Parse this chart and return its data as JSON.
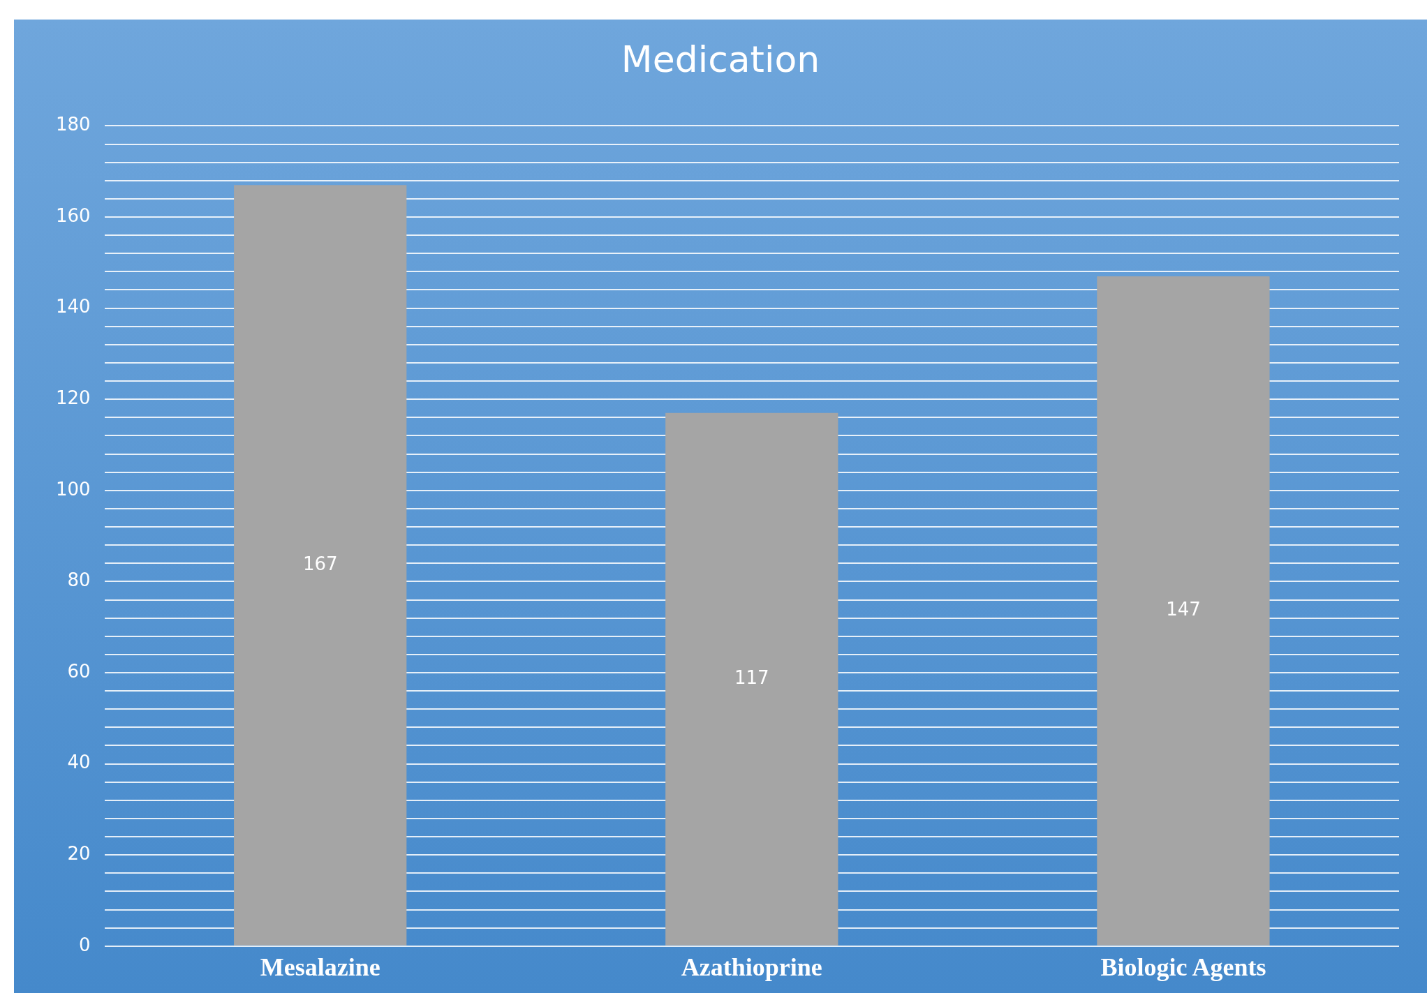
{
  "chart_data": {
    "type": "bar",
    "title": "Medication",
    "categories": [
      "Mesalazine",
      "Azathioprine",
      "Biologic Agents"
    ],
    "values": [
      167,
      117,
      147
    ],
    "color": "#a5a5a5",
    "ylim": [
      0,
      180
    ],
    "yticks": [
      0,
      {
        "value": 4,
        "label": null
      },
      {
        "value": 8,
        "label": null
      },
      {
        "value": 12,
        "label": null
      },
      {
        "value": 16,
        "label": null
      },
      20,
      {
        "value": 24,
        "label": null
      },
      {
        "value": 28,
        "label": null
      },
      {
        "value": 32,
        "label": null
      },
      {
        "value": 36,
        "label": null
      },
      40,
      {
        "value": 44,
        "label": null
      },
      {
        "value": 48,
        "label": null
      },
      {
        "value": 52,
        "label": null
      },
      {
        "value": 56,
        "label": null
      },
      60,
      {
        "value": 64,
        "label": null
      },
      {
        "value": 68,
        "label": null
      },
      {
        "value": 72,
        "label": null
      },
      {
        "value": 76,
        "label": null
      },
      80,
      {
        "value": 84,
        "label": null
      },
      {
        "value": 88,
        "label": null
      },
      {
        "value": 92,
        "label": null
      },
      {
        "value": 96,
        "label": null
      },
      100,
      {
        "value": 104,
        "label": null
      },
      {
        "value": 108,
        "label": null
      },
      {
        "value": 112,
        "label": null
      },
      {
        "value": 116,
        "label": null
      },
      120,
      {
        "value": 124,
        "label": null
      },
      {
        "value": 128,
        "label": null
      },
      {
        "value": 132,
        "label": null
      },
      {
        "value": 136,
        "label": null
      },
      140,
      {
        "value": 144,
        "label": null
      },
      {
        "value": 148,
        "label": null
      },
      {
        "value": 152,
        "label": null
      },
      {
        "value": 156,
        "label": null
      },
      160,
      {
        "value": 164,
        "label": null
      },
      {
        "value": 168,
        "label": null
      },
      {
        "value": 172,
        "label": null
      },
      {
        "value": 176,
        "label": null
      },
      180
    ],
    "grid": "y",
    "data_labels": true
  }
}
